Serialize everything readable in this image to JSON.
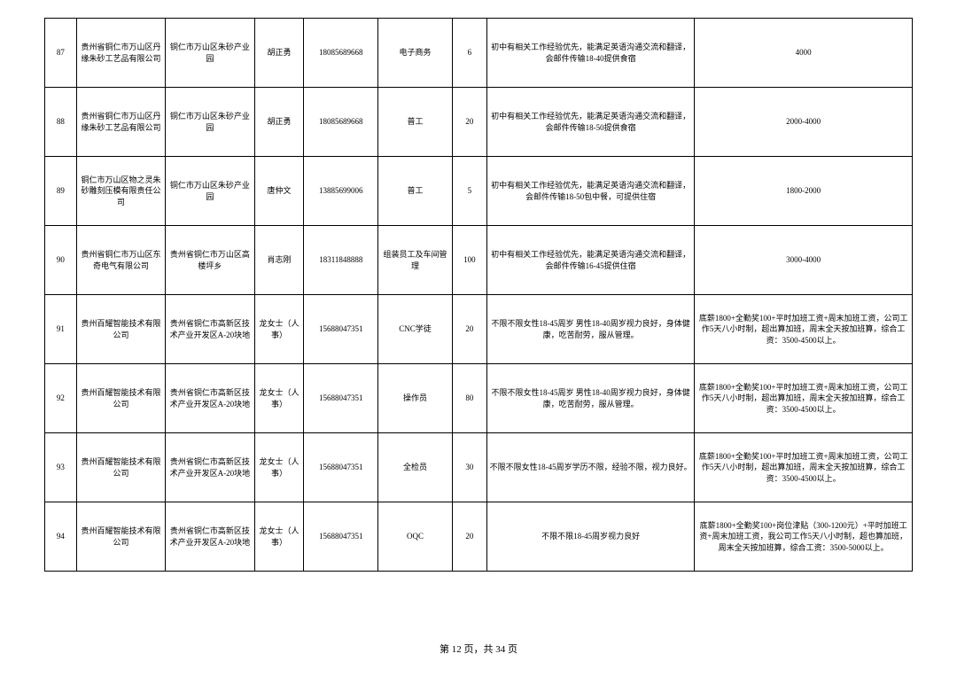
{
  "table": {
    "rows": [
      {
        "idx": "87",
        "company": "贵州省铜仁市万山区丹缘朱砂工艺品有限公司",
        "address": "铜仁市万山区朱砂产业园",
        "contact": "胡正勇",
        "phone": "18085689668",
        "position": "电子商务",
        "count": "6",
        "requirement": "初中有相关工作经验优先，能满足英语沟通交流和翻译，会邮件传输18-40提供食宿",
        "salary": "4000"
      },
      {
        "idx": "88",
        "company": "贵州省铜仁市万山区丹缘朱砂工艺品有限公司",
        "address": "铜仁市万山区朱砂产业园",
        "contact": "胡正勇",
        "phone": "18085689668",
        "position": "普工",
        "count": "20",
        "requirement": "初中有相关工作经验优先，能满足英语沟通交流和翻译，会邮件传输18-50提供食宿",
        "salary": "2000-4000"
      },
      {
        "idx": "89",
        "company": "铜仁市万山区物之灵朱砂雕刻压模有限责任公司",
        "address": "铜仁市万山区朱砂产业园",
        "contact": "唐仲文",
        "phone": "13885699006",
        "position": "普工",
        "count": "5",
        "requirement": "初中有相关工作经验优先，能满足英语沟通交流和翻译，会邮件传输18-50包中餐，可提供住宿",
        "salary": "1800-2000"
      },
      {
        "idx": "90",
        "company": "贵州省铜仁市万山区东奇电气有限公司",
        "address": "贵州省铜仁市万山区高楼坪乡",
        "contact": "肖志刚",
        "phone": "18311848888",
        "position": "组装员工及车间管理",
        "count": "100",
        "requirement": "初中有相关工作经验优先，能满足英语沟通交流和翻译，会邮件传输16-45提供住宿",
        "salary": "3000-4000"
      },
      {
        "idx": "91",
        "company": "贵州百耀智能技术有限公司",
        "address": "贵州省铜仁市高新区技术产业开发区A-20块地",
        "contact": "龙女士（人事）",
        "phone": "15688047351",
        "position": "CNC学徒",
        "count": "20",
        "requirement": "不限不限女性18-45周岁\n男性18-40周岁视力良好，身体健康，吃苦耐劳，服从管理。",
        "salary": "底薪1800+全勤奖100+平时加班工资+周末加班工资，公司工作5天八小时制，超出算加班，周末全天按加班算，综合工资：3500-4500以上。"
      },
      {
        "idx": "92",
        "company": "贵州百耀智能技术有限公司",
        "address": "贵州省铜仁市高新区技术产业开发区A-20块地",
        "contact": "龙女士（人事）",
        "phone": "15688047351",
        "position": "操作员",
        "count": "80",
        "requirement": "不限不限女性18-45周岁\n男性18-40周岁视力良好，身体健康，吃苦耐劳，服从管理。",
        "salary": "底薪1800+全勤奖100+平时加班工资+周末加班工资，公司工作5天八小时制，超出算加班，周末全天按加班算，综合工资：3500-4500以上。"
      },
      {
        "idx": "93",
        "company": "贵州百耀智能技术有限公司",
        "address": "贵州省铜仁市高新区技术产业开发区A-20块地",
        "contact": "龙女士（人事）",
        "phone": "15688047351",
        "position": "全检员",
        "count": "30",
        "requirement": "不限不限女性18-45周岁学历不限，经验不限，视力良好。",
        "salary": "底薪1800+全勤奖100+平时加班工资+周末加班工资，公司工作5天八小时制，超出算加班，周末全天按加班算，综合工资：3500-4500以上。"
      },
      {
        "idx": "94",
        "company": "贵州百耀智能技术有限公司",
        "address": "贵州省铜仁市高新区技术产业开发区A-20块地",
        "contact": "龙女士（人事）",
        "phone": "15688047351",
        "position": "OQC",
        "count": "20",
        "requirement": "不限不限18-45周岁视力良好",
        "salary": "底薪1800+全勤奖100+岗位津贴（300-1200元）+平时加班工资+周末加班工资，我公司工作5天八小时制，超也算加班，周末全天按加班算，综合工资：3500-5000以上。"
      }
    ]
  },
  "footer": {
    "text": "第 12 页，共 34 页"
  }
}
